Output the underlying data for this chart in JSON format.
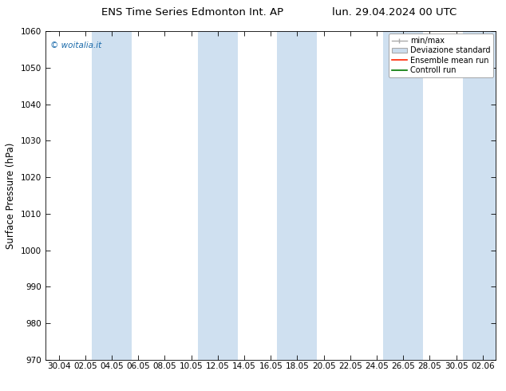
{
  "title_left": "ENS Time Series Edmonton Int. AP",
  "title_right": "lun. 29.04.2024 00 UTC",
  "ylabel": "Surface Pressure (hPa)",
  "ylim": [
    970,
    1060
  ],
  "yticks": [
    970,
    980,
    990,
    1000,
    1010,
    1020,
    1030,
    1040,
    1050,
    1060
  ],
  "xtick_labels": [
    "30.04",
    "02.05",
    "04.05",
    "06.05",
    "08.05",
    "10.05",
    "12.05",
    "14.05",
    "16.05",
    "18.05",
    "20.05",
    "22.05",
    "24.05",
    "26.05",
    "28.05",
    "30.05",
    "02.06"
  ],
  "watermark": "© woitalia.it",
  "legend_entries": [
    "min/max",
    "Deviazione standard",
    "Ensemble mean run",
    "Controll run"
  ],
  "band_color": "#cfe0f0",
  "background_color": "#ffffff",
  "title_fontsize": 9.5,
  "tick_fontsize": 7.5,
  "ylabel_fontsize": 8.5,
  "watermark_color": "#1a6aaa",
  "ensemble_color": "#ff2200",
  "control_color": "#007700",
  "minmax_color": "#aaaaaa",
  "devstd_color": "#ccddee",
  "band_indices": [
    2,
    5,
    9,
    13,
    16
  ]
}
